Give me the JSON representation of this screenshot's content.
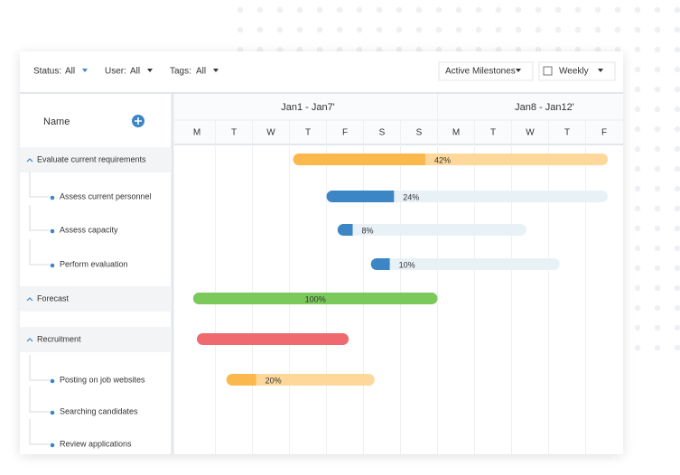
{
  "toolbar": {
    "filters": [
      {
        "label": "Status:",
        "value": "All"
      },
      {
        "label": "User:",
        "value": "All"
      },
      {
        "label": "Tags:",
        "value": "All"
      }
    ],
    "milestones": "Active Milestones",
    "view": "Weekly"
  },
  "name_header": "Name",
  "timeline": {
    "weeks": [
      "Jan1 - Jan7'",
      "Jan8 - Jan12'"
    ],
    "days": [
      "M",
      "T",
      "W",
      "T",
      "F",
      "S",
      "S",
      "M",
      "T",
      "W",
      "T",
      "F"
    ]
  },
  "tasks": [
    {
      "label": "Evaluate current requirements",
      "group": true,
      "start": 3.1,
      "end": 11.6,
      "progress": 42,
      "progress_label": "42%",
      "color": "#fbb84c",
      "track": "#fdd89a"
    },
    {
      "label": "Assess current personnel",
      "start": 4.0,
      "end": 11.6,
      "progress": 24,
      "progress_label": "24%",
      "color": "#3d86c6",
      "track": "#e8f1f6"
    },
    {
      "label": "Assess capacity",
      "start": 4.3,
      "end": 9.4,
      "progress": 8,
      "progress_label": "8%",
      "color": "#3d86c6",
      "track": "#e8f1f6"
    },
    {
      "label": "Perform evaluation",
      "start": 5.2,
      "end": 10.3,
      "progress": 10,
      "progress_label": "10%",
      "color": "#3d86c6",
      "track": "#e8f1f6"
    },
    {
      "label": "Forecast",
      "group": true,
      "start": 0.4,
      "end": 7.0,
      "progress": 100,
      "progress_label": "100%",
      "color": "#7ac95a",
      "track": "#c9eab9"
    },
    {
      "label": "Recruitment",
      "group": true,
      "start": 0.5,
      "end": 4.6,
      "color": "#ef6a6e"
    },
    {
      "label": "Posting on job websites",
      "start": 1.3,
      "end": 5.3,
      "progress": 20,
      "progress_label": "20%",
      "color": "#fbb84c",
      "track": "#fdd89a"
    },
    {
      "label": "Searching candidates"
    },
    {
      "label": "Review applications"
    }
  ]
}
